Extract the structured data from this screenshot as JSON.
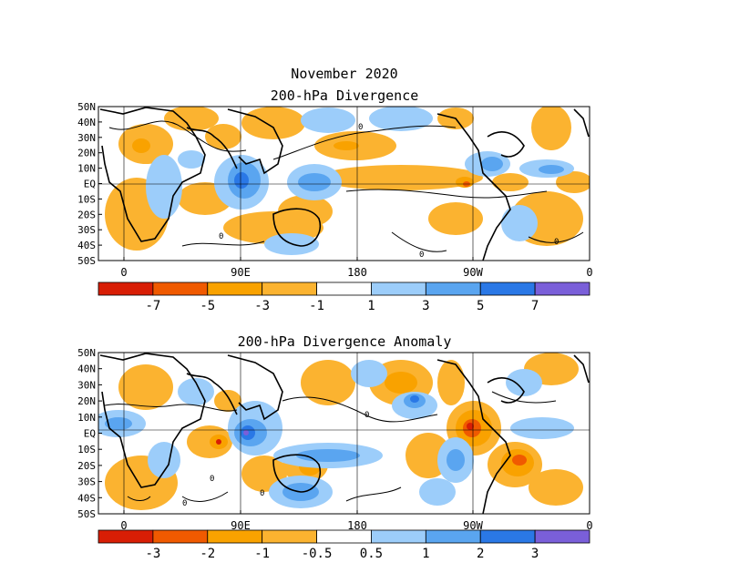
{
  "chart_data": [
    {
      "type": "heatmap",
      "title": "November 2020",
      "subtitle": "200-hPa Divergence",
      "y_ticks": [
        "50N",
        "40N",
        "30N",
        "20N",
        "10N",
        "EQ",
        "10S",
        "20S",
        "30S",
        "40S",
        "50S"
      ],
      "x_ticks": [
        "0",
        "90E",
        "180",
        "90W",
        "0"
      ],
      "colorbar": {
        "colors": [
          "#d81e05",
          "#f05a00",
          "#f9a200",
          "#fbb330",
          "#ffffff",
          "#9ccdfa",
          "#5aa5f0",
          "#2a78e6",
          "#7a5fd9"
        ],
        "labels": [
          "-7",
          "-5",
          "-3",
          "-1",
          "1",
          "3",
          "5",
          "7"
        ]
      },
      "grid": true,
      "contour_labels": [
        "0"
      ]
    },
    {
      "type": "heatmap",
      "title": "200-hPa Divergence Anomaly",
      "y_ticks": [
        "50N",
        "40N",
        "30N",
        "20N",
        "10N",
        "EQ",
        "10S",
        "20S",
        "30S",
        "40S",
        "50S"
      ],
      "x_ticks": [
        "0",
        "90E",
        "180",
        "90W",
        "0"
      ],
      "colorbar": {
        "colors": [
          "#d81e05",
          "#f05a00",
          "#f9a200",
          "#fbb330",
          "#ffffff",
          "#9ccdfa",
          "#5aa5f0",
          "#2a78e6",
          "#7a5fd9"
        ],
        "labels": [
          "-3",
          "-2",
          "-1",
          "-0.5",
          "0.5",
          "1",
          "2",
          "3"
        ]
      },
      "grid": true,
      "contour_labels": [
        "0"
      ]
    }
  ]
}
